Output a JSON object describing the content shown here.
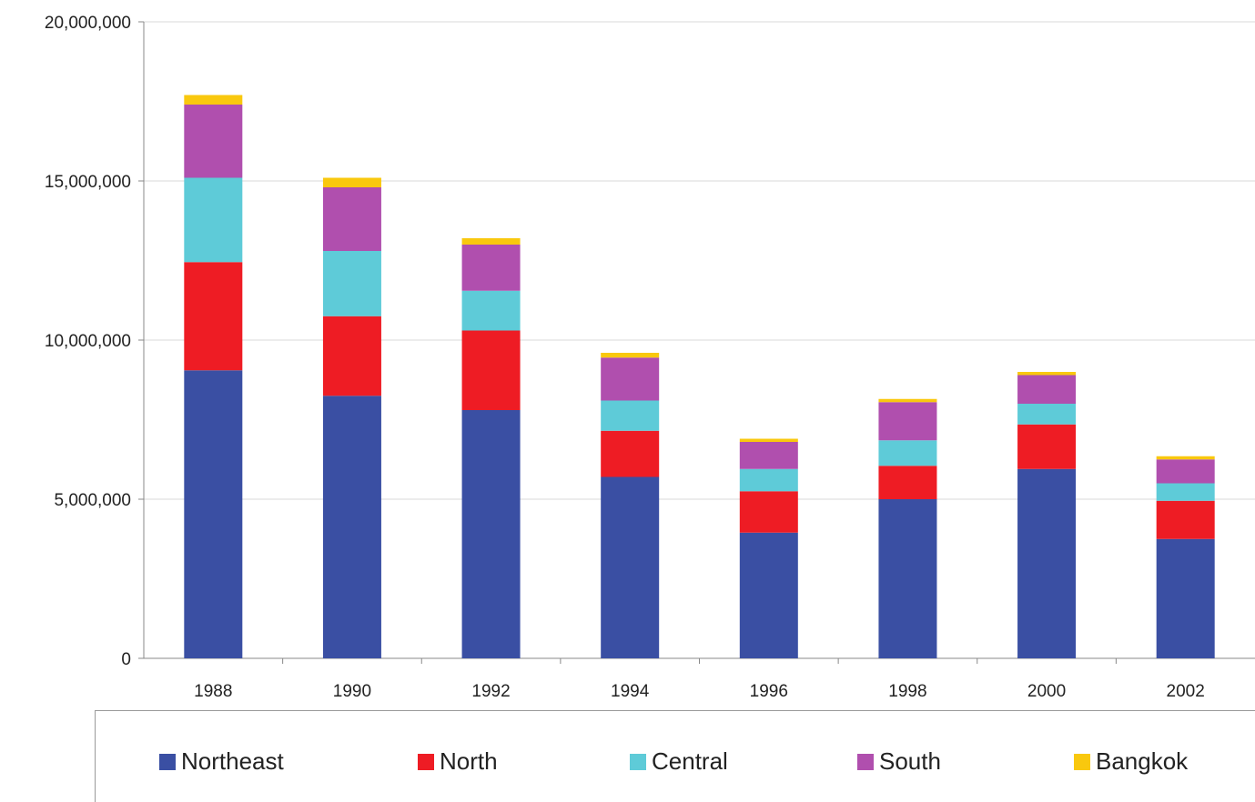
{
  "chart_data": {
    "type": "bar",
    "stacked": true,
    "categories": [
      "1988",
      "1990",
      "1992",
      "1994",
      "1996",
      "1998",
      "2000",
      "2002"
    ],
    "series": [
      {
        "name": "Northeast",
        "color": "#3a4fa3",
        "values": [
          9050000,
          8250000,
          7800000,
          5700000,
          3950000,
          5000000,
          5950000,
          3750000
        ]
      },
      {
        "name": "North",
        "color": "#ee1c24",
        "values": [
          3400000,
          2500000,
          2500000,
          1450000,
          1300000,
          1050000,
          1400000,
          1200000
        ]
      },
      {
        "name": "Central",
        "color": "#5ecbd8",
        "values": [
          2650000,
          2050000,
          1250000,
          950000,
          700000,
          800000,
          650000,
          550000
        ]
      },
      {
        "name": "South",
        "color": "#b04fae",
        "values": [
          2300000,
          2000000,
          1450000,
          1350000,
          850000,
          1200000,
          900000,
          750000
        ]
      },
      {
        "name": "Bangkok",
        "color": "#f9c80e",
        "values": [
          300000,
          300000,
          200000,
          150000,
          100000,
          100000,
          100000,
          100000
        ]
      }
    ],
    "yticks": [
      "0",
      "5,000,000",
      "10,000,000",
      "15,000,000",
      "20,000,000"
    ],
    "ylim": [
      0,
      20000000
    ],
    "grid": true,
    "legend_position": "bottom",
    "title": "",
    "xlabel": "",
    "ylabel": ""
  }
}
